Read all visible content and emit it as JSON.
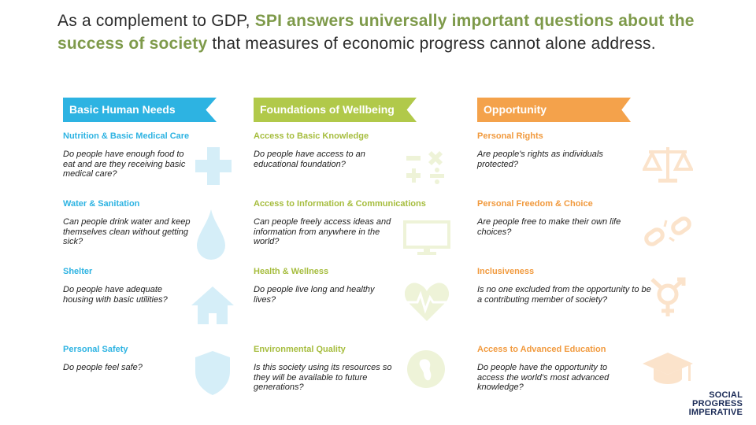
{
  "intro": {
    "part1": "As a complement to GDP, ",
    "highlight": "SPI answers universally important questions about the success of society",
    "part2": " that measures of economic progress cannot alone address."
  },
  "columns": [
    {
      "banner": "Basic Human Needs",
      "items": [
        {
          "title": "Nutrition & Basic Medical Care",
          "question": "Do people have enough food to eat and are they receiving basic medical care?",
          "icon": "medical-cross-icon"
        },
        {
          "title": "Water & Sanitation",
          "question": "Can people drink water and keep themselves clean without getting sick?",
          "icon": "water-drop-icon"
        },
        {
          "title": "Shelter",
          "question": "Do people have adequate housing with basic utilities?",
          "icon": "house-icon"
        },
        {
          "title": "Personal Safety",
          "question": "Do people feel safe?",
          "icon": "shield-icon"
        }
      ]
    },
    {
      "banner": "Foundations of Wellbeing",
      "items": [
        {
          "title": "Access to Basic Knowledge",
          "question": "Do people have access to an educational foundation?",
          "icon": "math-symbols-icon"
        },
        {
          "title": "Access to Information & Communications",
          "question": "Can people freely access ideas and information from anywhere in the world?",
          "icon": "monitor-icon"
        },
        {
          "title": "Health & Wellness",
          "question": "Do people live long and healthy lives?",
          "icon": "heartbeat-icon"
        },
        {
          "title": "Environmental Quality",
          "question": "Is this society using its resources so they will be available to future generations?",
          "icon": "globe-icon"
        }
      ]
    },
    {
      "banner": "Opportunity",
      "items": [
        {
          "title": "Personal Rights",
          "question": "Are people's rights as individuals protected?",
          "icon": "scales-icon"
        },
        {
          "title": "Personal Freedom & Choice",
          "question": "Are people free to make their own life choices?",
          "icon": "broken-chain-icon"
        },
        {
          "title": "Inclusiveness",
          "question": "Is no one excluded from the opportunity to be a contributing member of society?",
          "icon": "gender-symbol-icon"
        },
        {
          "title": "Access to Advanced Education",
          "question": "Do people have the opportunity to access the world's most advanced knowledge?",
          "icon": "graduation-cap-icon"
        }
      ]
    }
  ],
  "logo": [
    "SOCIAL",
    "PROGRESS",
    "IMPERATIVE"
  ],
  "colors": {
    "blue": "#2db3e2",
    "green": "#b1c94a",
    "orange": "#f4a24b",
    "text_highlight": "#7e9a4a"
  }
}
